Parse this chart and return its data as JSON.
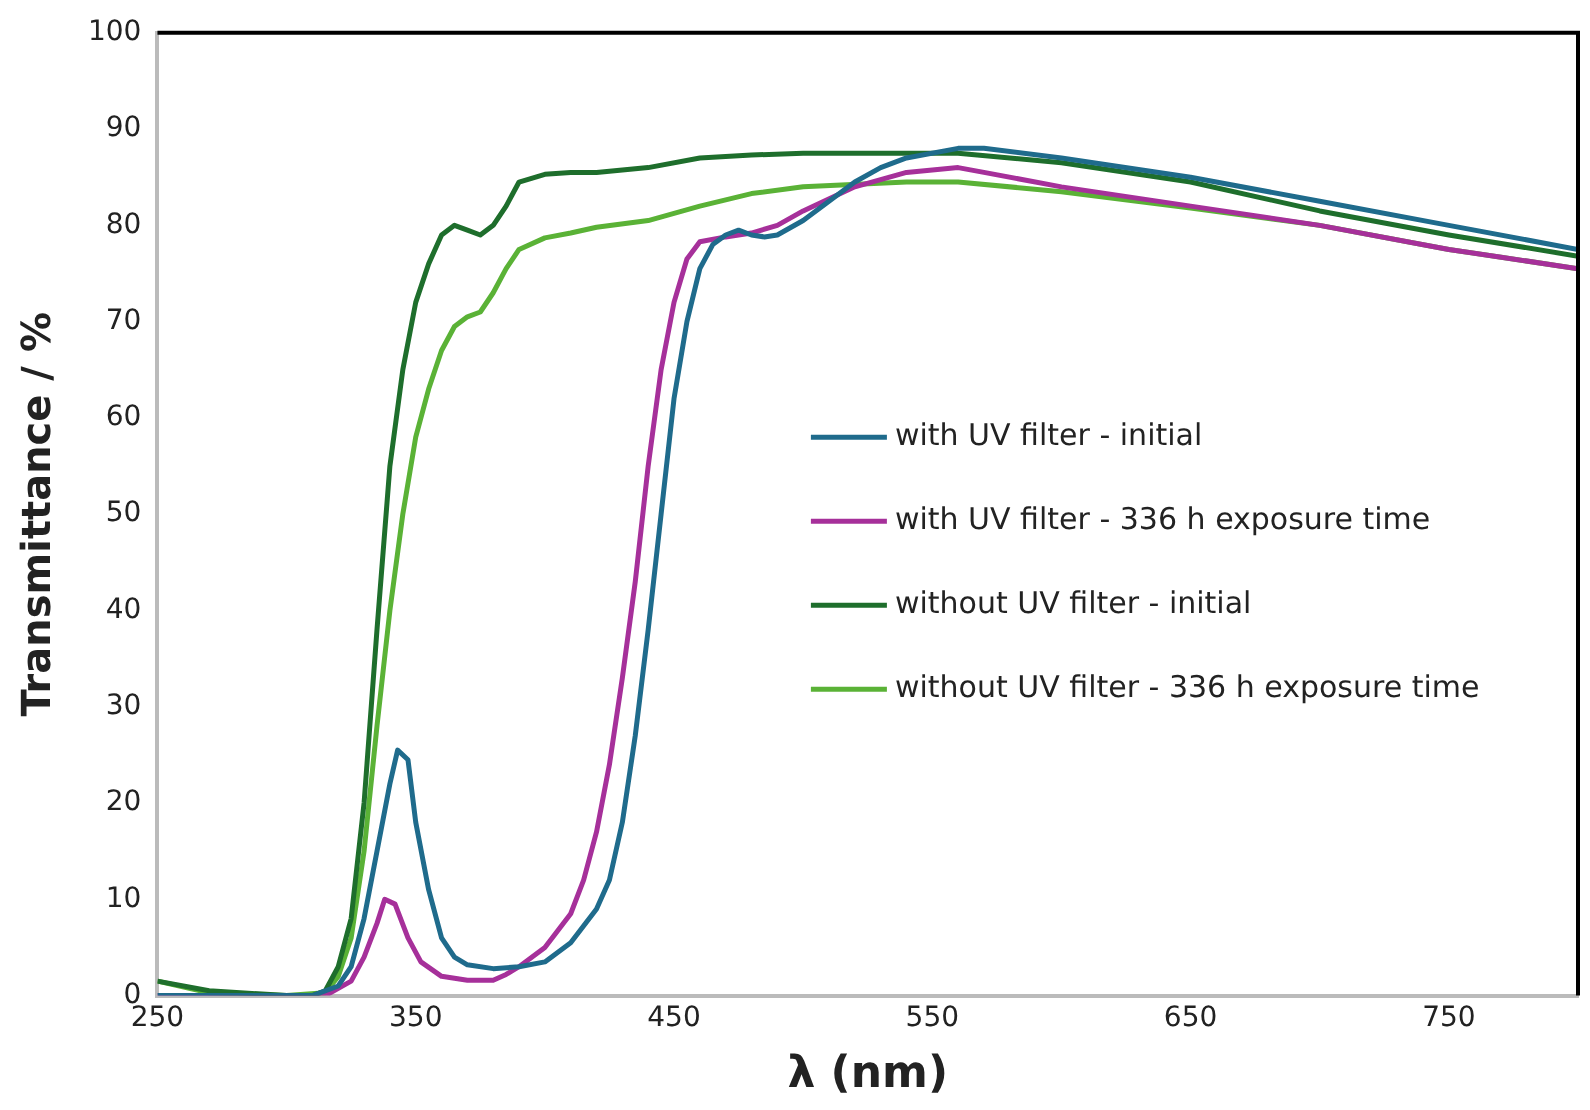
{
  "chart_data": {
    "type": "line",
    "xlabel": "λ (nm)",
    "ylabel": "Transmittance / %",
    "xlim": [
      250,
      800
    ],
    "xticks": [
      250,
      350,
      450,
      550,
      650,
      750
    ],
    "ylim": [
      0,
      100
    ],
    "yticks": [
      0,
      10,
      20,
      30,
      40,
      50,
      60,
      70,
      80,
      90,
      100
    ],
    "grid": false,
    "legend": "right",
    "marker": "none",
    "line_style": "solid",
    "series": [
      {
        "name": "with UV filter - initial",
        "color": "#1f6b8c",
        "x": [
          250,
          310,
          320,
          325,
          330,
          335,
          340,
          343,
          347,
          350,
          355,
          360,
          365,
          370,
          380,
          390,
          400,
          410,
          420,
          425,
          430,
          435,
          440,
          445,
          450,
          455,
          460,
          465,
          470,
          475,
          480,
          485,
          490,
          500,
          510,
          520,
          530,
          540,
          560,
          570,
          600,
          650,
          700,
          750,
          800
        ],
        "values": [
          0,
          0,
          1,
          3,
          8,
          15,
          22,
          25.5,
          24.5,
          18,
          11,
          6,
          4,
          3.2,
          2.8,
          3,
          3.5,
          5.5,
          9,
          12,
          18,
          27,
          38,
          50,
          62,
          70,
          75.5,
          78,
          79,
          79.5,
          79,
          78.8,
          79,
          80.5,
          82.5,
          84.5,
          86,
          87,
          88,
          88,
          87,
          85,
          82.5,
          80,
          77.5
        ]
      },
      {
        "name": "with UV filter - 336 h exposure time",
        "color": "#a6309a",
        "x": [
          250,
          315,
          325,
          330,
          335,
          338,
          342,
          347,
          352,
          360,
          370,
          380,
          385,
          390,
          400,
          410,
          415,
          420,
          425,
          430,
          435,
          440,
          445,
          450,
          455,
          460,
          470,
          480,
          490,
          500,
          520,
          540,
          560,
          570,
          600,
          650,
          700,
          750,
          800
        ],
        "values": [
          0,
          0,
          1.5,
          4,
          7.5,
          10,
          9.5,
          6,
          3.5,
          2,
          1.6,
          1.6,
          2.2,
          3,
          5,
          8.5,
          12,
          17,
          24,
          33,
          43,
          55,
          65,
          72,
          76.5,
          78.3,
          78.8,
          79.2,
          80,
          81.5,
          84,
          85.5,
          86,
          85.5,
          84,
          82,
          80,
          77.5,
          75.5
        ]
      },
      {
        "name": "without UV filter - initial",
        "color": "#1e6e2c",
        "x": [
          250,
          270,
          300,
          310,
          315,
          320,
          325,
          330,
          335,
          340,
          345,
          350,
          355,
          360,
          365,
          370,
          375,
          380,
          385,
          390,
          400,
          410,
          420,
          440,
          460,
          480,
          500,
          520,
          560,
          600,
          650,
          700,
          750,
          800
        ],
        "values": [
          1.5,
          0.5,
          0,
          0,
          0.5,
          3,
          8,
          20,
          38,
          55,
          65,
          72,
          76,
          79,
          80,
          79.5,
          79,
          80,
          82,
          84.5,
          85.3,
          85.5,
          85.5,
          86,
          87,
          87.3,
          87.5,
          87.5,
          87.5,
          86.5,
          84.5,
          81.5,
          79,
          76.8
        ]
      },
      {
        "name": "without UV filter - 336 h exposure time",
        "color": "#5ab236",
        "x": [
          250,
          270,
          300,
          315,
          320,
          325,
          330,
          335,
          340,
          345,
          350,
          355,
          360,
          365,
          370,
          375,
          380,
          385,
          390,
          400,
          410,
          420,
          440,
          460,
          480,
          500,
          540,
          560,
          600,
          650,
          700,
          750,
          800
        ],
        "values": [
          1.5,
          0.3,
          0,
          0.3,
          2,
          6,
          15,
          28,
          40,
          50,
          58,
          63,
          67,
          69.5,
          70.5,
          71,
          73,
          75.5,
          77.5,
          78.7,
          79.2,
          79.8,
          80.5,
          82,
          83.3,
          84,
          84.5,
          84.5,
          83.5,
          81.8,
          80,
          77.5,
          75.5
        ]
      }
    ]
  }
}
